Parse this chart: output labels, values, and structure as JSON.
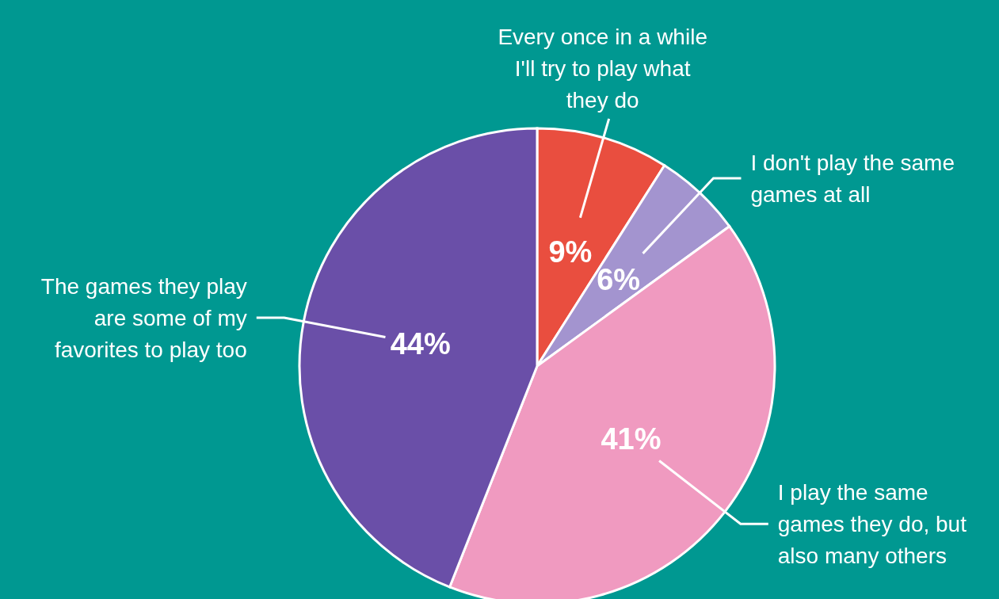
{
  "chart_data": {
    "type": "pie",
    "categories": [
      "Every once in a while I'll try to play what they do",
      "I don't play the same games at all",
      "I play the same games they do, but also many others",
      "The games they play are some of my favorites to play too"
    ],
    "values": [
      9,
      6,
      41,
      44
    ],
    "value_labels": [
      "9%",
      "6%",
      "41%",
      "44%"
    ],
    "colors": [
      "#e94e3f",
      "#a394cf",
      "#f09ac0",
      "#6a4fa8"
    ],
    "legend": false
  }
}
